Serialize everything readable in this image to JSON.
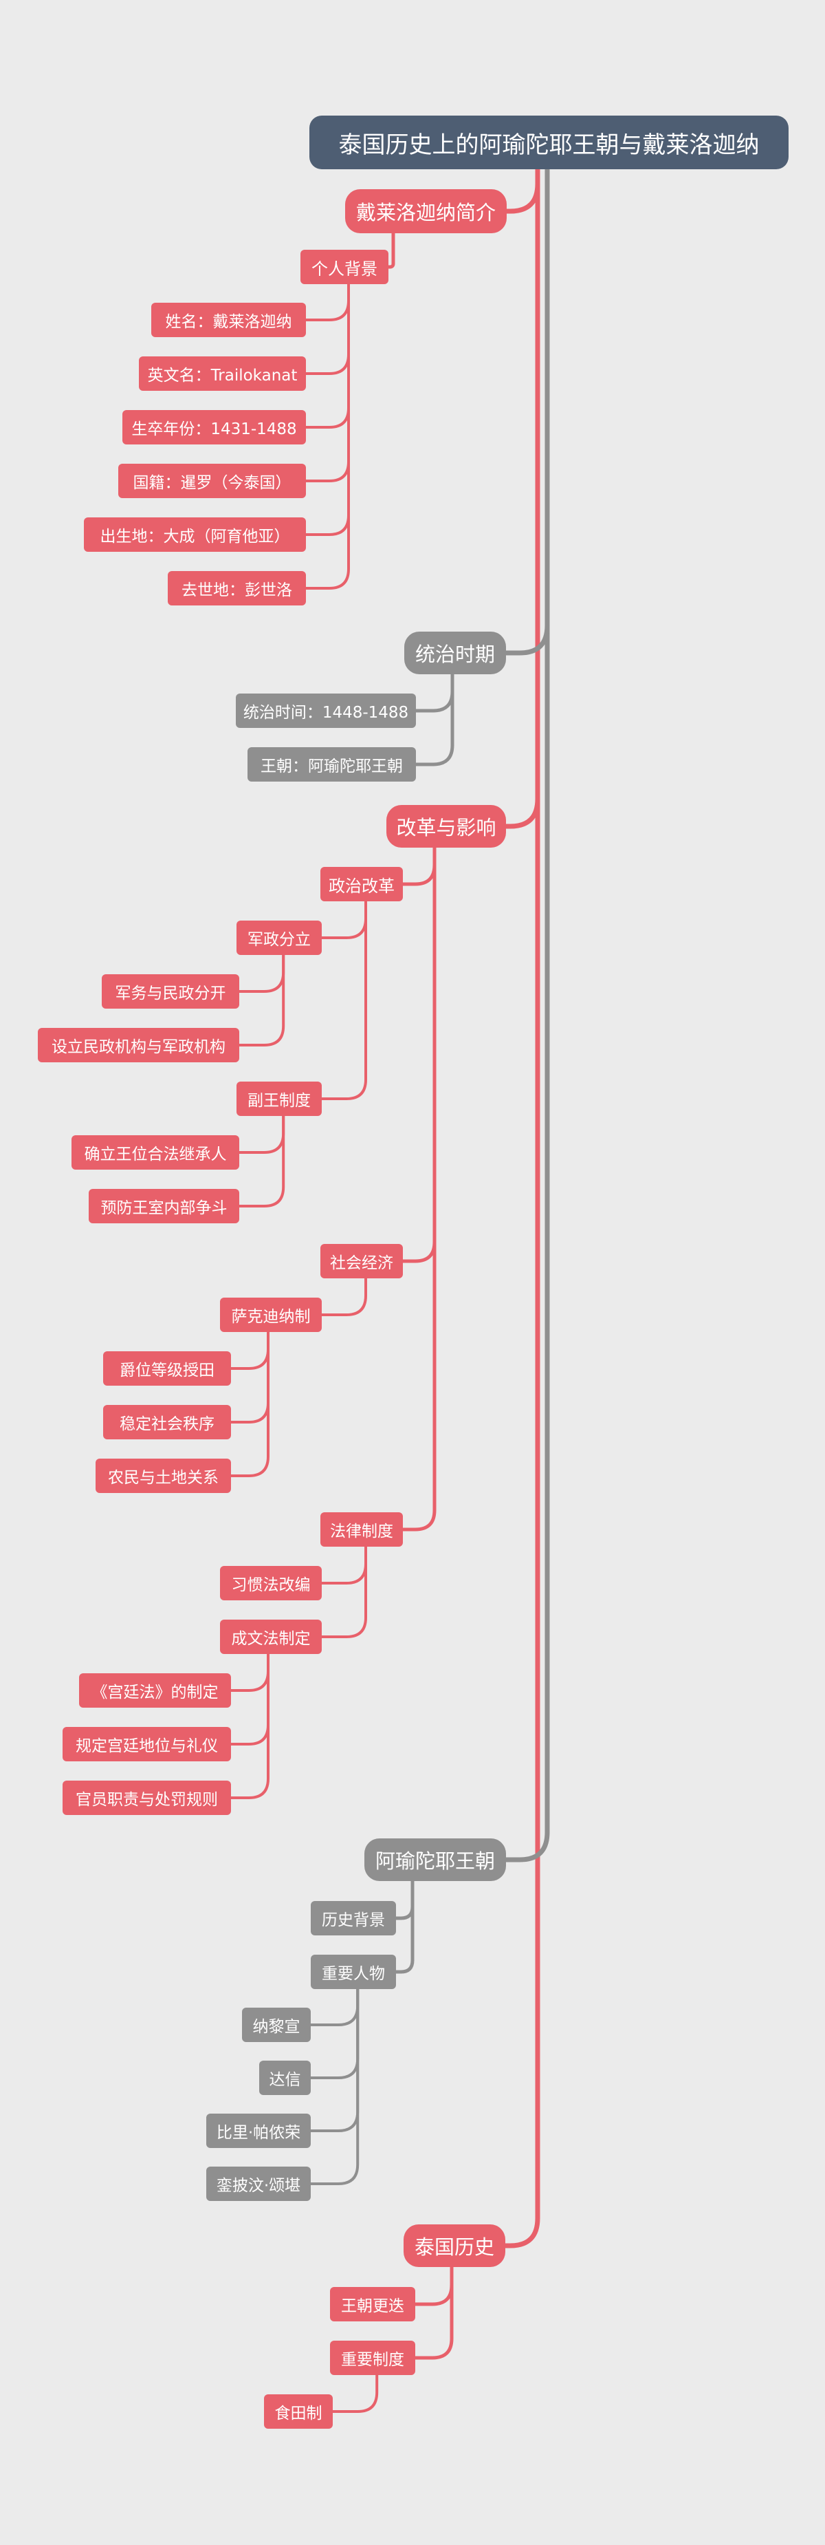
{
  "colors": {
    "red": "#e8606a",
    "grey": "#8f8f8f",
    "root": "#4e5e73",
    "background": "#ebebeb"
  },
  "root": "泰国历史上的阿瑜陀耶王朝与戴莱洛迦纳",
  "topics": [
    {
      "id": "t1",
      "color": "red",
      "label": "戴莱洛迦纳简介",
      "children": [
        {
          "id": "t1a",
          "label": "个人背景",
          "children": [
            {
              "id": "t1a1",
              "label": "姓名：戴莱洛迦纳"
            },
            {
              "id": "t1a2",
              "label": "英文名：Trailokanat"
            },
            {
              "id": "t1a3",
              "label": "生卒年份：1431-1488"
            },
            {
              "id": "t1a4",
              "label": "国籍：暹罗（今泰国）"
            },
            {
              "id": "t1a5",
              "label": "出生地：大成（阿育他亚）"
            },
            {
              "id": "t1a6",
              "label": "去世地：彭世洛"
            }
          ]
        }
      ]
    },
    {
      "id": "t2",
      "color": "grey",
      "label": "统治时期",
      "children": [
        {
          "id": "t2a",
          "label": "统治时间：1448-1488"
        },
        {
          "id": "t2b",
          "label": "王朝：阿瑜陀耶王朝"
        }
      ]
    },
    {
      "id": "t3",
      "color": "red",
      "label": "改革与影响",
      "children": [
        {
          "id": "t3a",
          "label": "政治改革",
          "children": [
            {
              "id": "t3a1",
              "label": "军政分立",
              "children": [
                {
                  "id": "t3a1a",
                  "label": "军务与民政分开"
                },
                {
                  "id": "t3a1b",
                  "label": "设立民政机构与军政机构"
                }
              ]
            },
            {
              "id": "t3a2",
              "label": "副王制度",
              "children": [
                {
                  "id": "t3a2a",
                  "label": "确立王位合法继承人"
                },
                {
                  "id": "t3a2b",
                  "label": "预防王室内部争斗"
                }
              ]
            }
          ]
        },
        {
          "id": "t3b",
          "label": "社会经济",
          "children": [
            {
              "id": "t3b1",
              "label": "萨克迪纳制",
              "children": [
                {
                  "id": "t3b1a",
                  "label": "爵位等级授田"
                },
                {
                  "id": "t3b1b",
                  "label": "稳定社会秩序"
                },
                {
                  "id": "t3b1c",
                  "label": "农民与土地关系"
                }
              ]
            }
          ]
        },
        {
          "id": "t3c",
          "label": "法律制度",
          "children": [
            {
              "id": "t3c1",
              "label": "习惯法改编"
            },
            {
              "id": "t3c2",
              "label": "成文法制定",
              "children": [
                {
                  "id": "t3c2a",
                  "label": "《宫廷法》的制定"
                },
                {
                  "id": "t3c2b",
                  "label": "规定宫廷地位与礼仪"
                },
                {
                  "id": "t3c2c",
                  "label": "官员职责与处罚规则"
                }
              ]
            }
          ]
        }
      ]
    },
    {
      "id": "t4",
      "color": "grey",
      "label": "阿瑜陀耶王朝",
      "children": [
        {
          "id": "t4a",
          "label": "历史背景"
        },
        {
          "id": "t4b",
          "label": "重要人物",
          "children": [
            {
              "id": "t4b1",
              "label": "纳黎宣"
            },
            {
              "id": "t4b2",
              "label": "达信"
            },
            {
              "id": "t4b3",
              "label": "比里·帕侬荣"
            },
            {
              "id": "t4b4",
              "label": "銮披汶·颂堪"
            }
          ]
        }
      ]
    },
    {
      "id": "t5",
      "color": "red",
      "label": "泰国历史",
      "children": [
        {
          "id": "t5a",
          "label": "王朝更迭"
        },
        {
          "id": "t5b",
          "label": "重要制度",
          "children": [
            {
              "id": "t5b1",
              "label": "食田制"
            }
          ]
        }
      ]
    }
  ]
}
